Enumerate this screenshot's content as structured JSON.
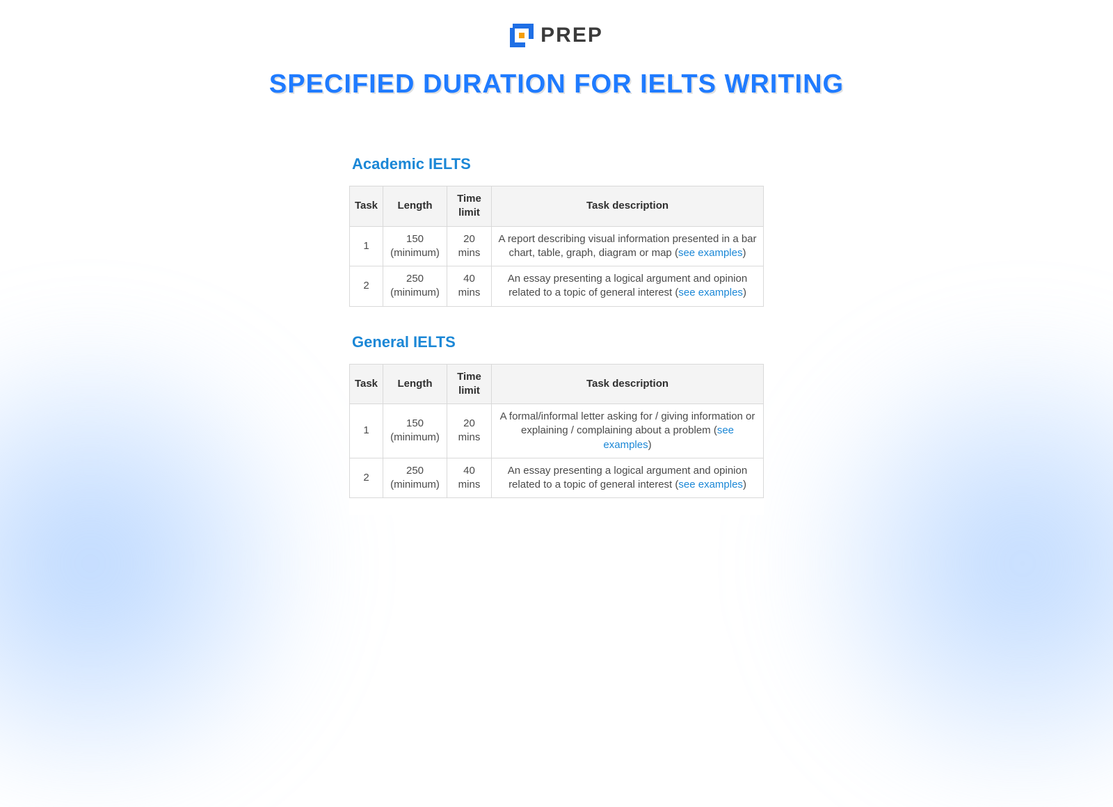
{
  "brand": {
    "name": "PREP"
  },
  "title": "SPECIFIED DURATION FOR IELTS WRITING",
  "colors": {
    "title_color": "#1f7bff",
    "section_heading_color": "#1b87d6",
    "link_color": "#1b87d6",
    "table_border": "#d9d9d9",
    "table_header_bg": "#f4f4f4",
    "text_color": "#4a4a4a",
    "logo_blue": "#1f6fe5",
    "logo_orange": "#f59e0b",
    "bg_blob": "rgba(160,200,255,0.7)"
  },
  "table_headers": {
    "task": "Task",
    "length": "Length",
    "time": "Time limit",
    "desc": "Task description"
  },
  "sections": [
    {
      "heading": "Academic IELTS",
      "rows": [
        {
          "task": "1",
          "length": "150 (minimum)",
          "time": "20 mins",
          "desc_pre": "A report describing visual information presented in a bar chart, table, graph, diagram or map (",
          "link": "see examples",
          "desc_post": ")"
        },
        {
          "task": "2",
          "length": "250 (minimum)",
          "time": "40 mins",
          "desc_pre": "An essay presenting a logical argument and opinion related to a topic of general interest (",
          "link": "see examples",
          "desc_post": ")"
        }
      ]
    },
    {
      "heading": "General IELTS",
      "rows": [
        {
          "task": "1",
          "length": "150 (minimum)",
          "time": "20 mins",
          "desc_pre": "A formal/informal letter asking for / giving information or explaining / complaining about a problem (",
          "link": "see examples",
          "desc_post": ")"
        },
        {
          "task": "2",
          "length": "250 (minimum)",
          "time": "40 mins",
          "desc_pre": "An essay presenting a logical argument and opinion related to a topic of general interest (",
          "link": "see examples",
          "desc_post": ")"
        }
      ]
    }
  ]
}
